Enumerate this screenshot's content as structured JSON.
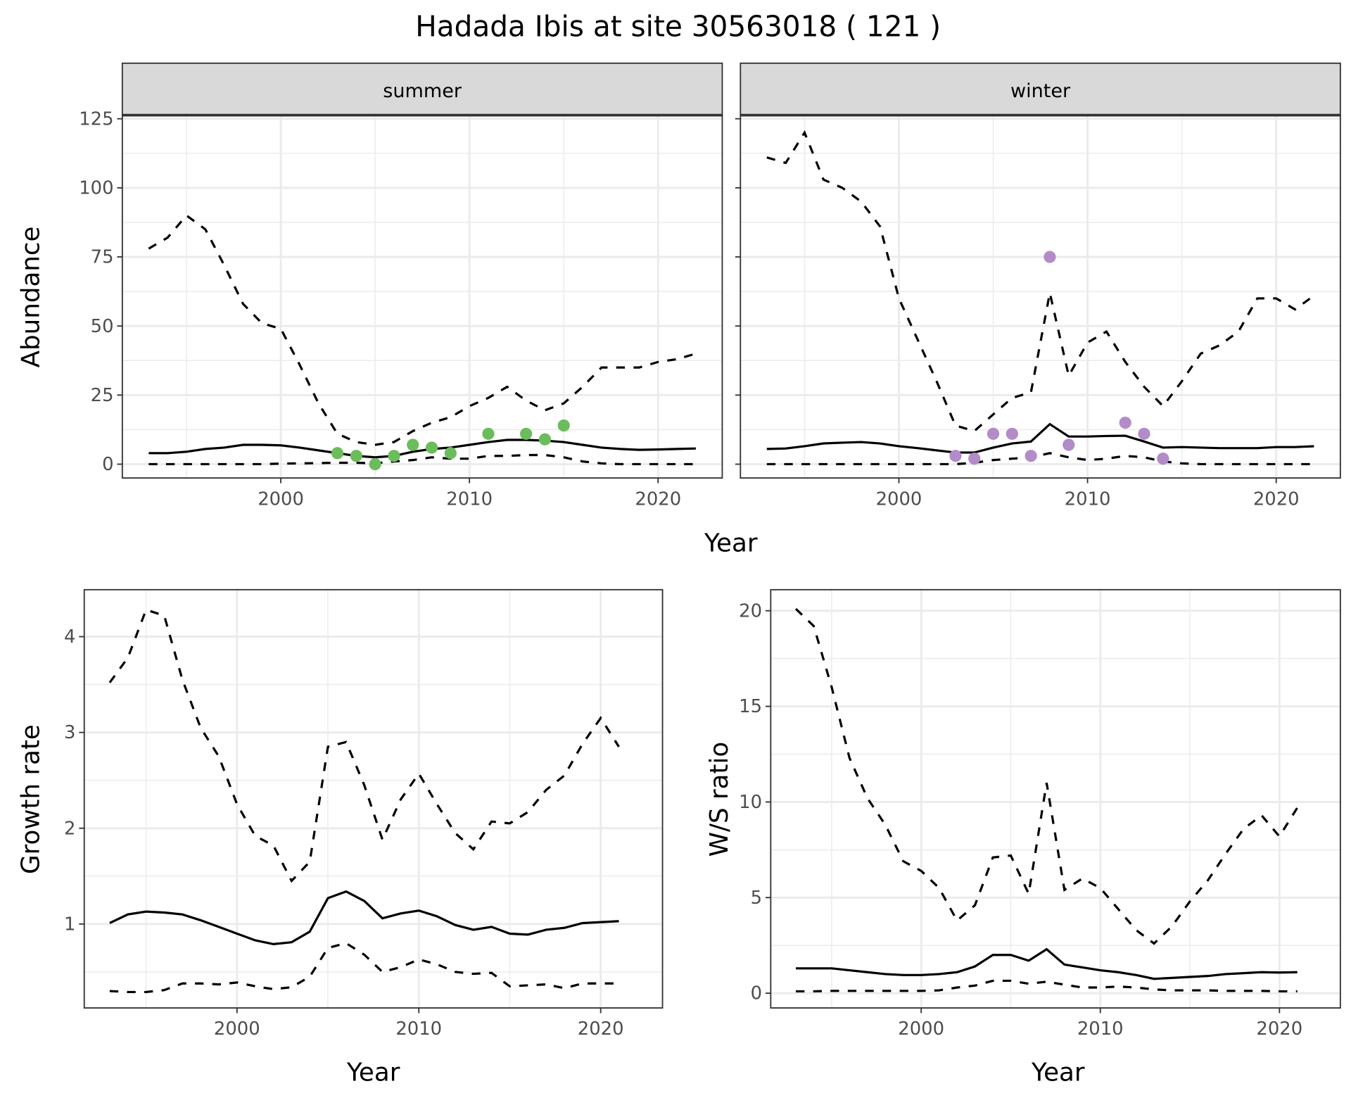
{
  "title": "Hadada Ibis at site 30563018 ( 121 )",
  "colors": {
    "summer_points": "#6bbd5b",
    "winter_points": "#b38bc8",
    "line": "#000000",
    "strip": "#d9d9d9",
    "grid": "#ebebeb"
  },
  "chart_data": [
    {
      "type": "line",
      "panel": "summer",
      "strip_label": "summer",
      "xlabel": "Year",
      "ylabel": "Abundance",
      "xlim": [
        1991.6,
        2023.4
      ],
      "ylim": [
        -5,
        126.3
      ],
      "x_ticks": [
        2000,
        2010,
        2020
      ],
      "y_ticks": [
        0,
        25,
        50,
        75,
        100,
        125
      ],
      "x": [
        1993,
        1994,
        1995,
        1996,
        1997,
        1998,
        1999,
        2000,
        2001,
        2002,
        2003,
        2004,
        2005,
        2006,
        2007,
        2008,
        2009,
        2010,
        2011,
        2012,
        2013,
        2014,
        2015,
        2016,
        2017,
        2018,
        2019,
        2020,
        2021,
        2022
      ],
      "series": [
        {
          "name": "upper",
          "style": "dashed",
          "values": [
            78,
            82,
            90,
            85,
            72,
            58,
            51,
            49,
            36,
            22,
            11,
            8,
            7,
            8,
            12,
            15,
            17,
            21,
            24,
            28,
            23,
            19.5,
            22,
            28,
            35,
            35,
            35,
            37,
            38,
            40
          ]
        },
        {
          "name": "mean",
          "style": "solid",
          "values": [
            4,
            4,
            4.5,
            5.5,
            6,
            7,
            7,
            6.8,
            6,
            5,
            4,
            3,
            2.5,
            3,
            4.5,
            5.5,
            6,
            7,
            8,
            8.8,
            8.8,
            8.5,
            8,
            7,
            6,
            5.5,
            5.2,
            5.3,
            5.5,
            5.7
          ]
        },
        {
          "name": "lower",
          "style": "dashed",
          "values": [
            0,
            0,
            0,
            0,
            0,
            0,
            0,
            0.2,
            0.3,
            0.4,
            0.5,
            0.5,
            0.3,
            1,
            1.5,
            2.5,
            2,
            2,
            3,
            3,
            3.3,
            3.3,
            2.5,
            1,
            0.3,
            0,
            0,
            0,
            0,
            0
          ]
        }
      ],
      "points": {
        "x": [
          2003,
          2004,
          2005,
          2006,
          2007,
          2008,
          2009,
          2011,
          2013,
          2014,
          2015
        ],
        "y": [
          4,
          3,
          0,
          3,
          7,
          6,
          4,
          11,
          11,
          9,
          14
        ]
      }
    },
    {
      "type": "line",
      "panel": "winter",
      "strip_label": "winter",
      "xlabel": "Year",
      "ylabel": "Abundance",
      "xlim": [
        1991.6,
        2023.4
      ],
      "ylim": [
        -5,
        126.3
      ],
      "x_ticks": [
        2000,
        2010,
        2020
      ],
      "y_ticks": [
        0,
        25,
        50,
        75,
        100,
        125
      ],
      "x": [
        1993,
        1994,
        1995,
        1996,
        1997,
        1998,
        1999,
        2000,
        2001,
        2002,
        2003,
        2004,
        2005,
        2006,
        2007,
        2008,
        2009,
        2010,
        2011,
        2012,
        2013,
        2014,
        2015,
        2016,
        2017,
        2018,
        2019,
        2020,
        2021,
        2022
      ],
      "series": [
        {
          "name": "upper",
          "style": "dashed",
          "values": [
            111,
            109,
            120,
            103,
            100,
            95,
            86,
            60,
            45,
            30,
            14,
            12,
            18,
            24,
            26,
            62,
            32,
            44,
            48,
            37,
            28,
            21,
            30,
            40,
            43,
            48,
            60,
            60,
            56,
            61
          ]
        },
        {
          "name": "mean",
          "style": "solid",
          "values": [
            5.5,
            5.7,
            6.5,
            7.5,
            7.8,
            8,
            7.5,
            6.5,
            5.8,
            5,
            4.2,
            4.2,
            6,
            7.5,
            8.2,
            14.5,
            10,
            10,
            10.2,
            10.3,
            8.2,
            6,
            6.2,
            6,
            5.8,
            5.8,
            5.8,
            6.2,
            6.2,
            6.5
          ]
        },
        {
          "name": "lower",
          "style": "dashed",
          "values": [
            0,
            0,
            0,
            0,
            0,
            0,
            0,
            0,
            0,
            0,
            0,
            0.5,
            1.5,
            2,
            2.5,
            4,
            2.5,
            1.5,
            2,
            3,
            2.5,
            1,
            0.3,
            0,
            0,
            0,
            0,
            0,
            0,
            0
          ]
        }
      ],
      "points": {
        "x": [
          2003,
          2004,
          2005,
          2006,
          2007,
          2008,
          2009,
          2012,
          2013,
          2014
        ],
        "y": [
          3,
          2,
          11,
          11,
          3,
          75,
          7,
          15,
          11,
          2
        ]
      }
    },
    {
      "type": "line",
      "panel": "growth",
      "xlabel": "Year",
      "ylabel": "Growth rate",
      "xlim": [
        1991.6,
        2023.4
      ],
      "ylim": [
        0.124,
        4.49
      ],
      "x_ticks": [
        2000,
        2010,
        2020
      ],
      "y_ticks": [
        1,
        2,
        3,
        4
      ],
      "x": [
        1993,
        1994,
        1995,
        1996,
        1997,
        1998,
        1999,
        2000,
        2001,
        2002,
        2003,
        2004,
        2005,
        2006,
        2007,
        2008,
        2009,
        2010,
        2011,
        2012,
        2013,
        2014,
        2015,
        2016,
        2017,
        2018,
        2019,
        2020,
        2021
      ],
      "series": [
        {
          "name": "upper",
          "style": "dashed",
          "values": [
            3.52,
            3.78,
            4.28,
            4.22,
            3.55,
            3.05,
            2.75,
            2.25,
            1.92,
            1.82,
            1.45,
            1.65,
            2.85,
            2.9,
            2.45,
            1.88,
            2.3,
            2.57,
            2.25,
            1.95,
            1.78,
            2.07,
            2.05,
            2.17,
            2.4,
            2.55,
            2.88,
            3.15,
            2.85
          ]
        },
        {
          "name": "mean",
          "style": "solid",
          "values": [
            1.01,
            1.1,
            1.13,
            1.12,
            1.1,
            1.04,
            0.97,
            0.9,
            0.83,
            0.79,
            0.81,
            0.92,
            1.27,
            1.34,
            1.24,
            1.06,
            1.11,
            1.14,
            1.08,
            0.99,
            0.94,
            0.97,
            0.9,
            0.89,
            0.94,
            0.96,
            1.01,
            1.02,
            1.03
          ]
        },
        {
          "name": "lower",
          "style": "dashed",
          "values": [
            0.3,
            0.29,
            0.29,
            0.31,
            0.38,
            0.38,
            0.37,
            0.39,
            0.35,
            0.32,
            0.34,
            0.45,
            0.75,
            0.8,
            0.68,
            0.5,
            0.55,
            0.63,
            0.58,
            0.5,
            0.48,
            0.49,
            0.35,
            0.36,
            0.37,
            0.33,
            0.38,
            0.38,
            0.38
          ]
        }
      ]
    },
    {
      "type": "line",
      "panel": "ws_ratio",
      "xlabel": "Year",
      "ylabel": "W/S ratio",
      "xlim": [
        1991.6,
        2023.4
      ],
      "ylim": [
        -0.77,
        21.1
      ],
      "x_ticks": [
        2000,
        2010,
        2020
      ],
      "y_ticks": [
        0,
        5,
        10,
        15,
        20
      ],
      "x": [
        1993,
        1994,
        1995,
        1996,
        1997,
        1998,
        1999,
        2000,
        2001,
        2002,
        2003,
        2004,
        2005,
        2006,
        2007,
        2008,
        2009,
        2010,
        2011,
        2012,
        2013,
        2014,
        2015,
        2016,
        2017,
        2018,
        2019,
        2020,
        2021
      ],
      "series": [
        {
          "name": "upper",
          "style": "dashed",
          "values": [
            20.1,
            19.2,
            16,
            12.3,
            10.2,
            8.8,
            6.9,
            6.4,
            5.5,
            3.8,
            4.6,
            7.1,
            7.2,
            5.2,
            11,
            5.4,
            6,
            5.5,
            4.4,
            3.3,
            2.6,
            3.5,
            4.8,
            5.9,
            7.3,
            8.6,
            9.3,
            8.2,
            9.7
          ]
        },
        {
          "name": "mean",
          "style": "solid",
          "values": [
            1.3,
            1.3,
            1.3,
            1.2,
            1.1,
            1.0,
            0.95,
            0.95,
            1.0,
            1.1,
            1.4,
            2.0,
            2.0,
            1.7,
            2.3,
            1.5,
            1.35,
            1.2,
            1.1,
            0.95,
            0.75,
            0.8,
            0.85,
            0.9,
            1.0,
            1.05,
            1.1,
            1.08,
            1.1
          ]
        },
        {
          "name": "lower",
          "style": "dashed",
          "values": [
            0.1,
            0.1,
            0.12,
            0.12,
            0.12,
            0.12,
            0.12,
            0.12,
            0.15,
            0.3,
            0.4,
            0.65,
            0.65,
            0.5,
            0.6,
            0.45,
            0.3,
            0.3,
            0.35,
            0.3,
            0.2,
            0.15,
            0.15,
            0.15,
            0.12,
            0.12,
            0.12,
            0.1,
            0.1
          ]
        }
      ]
    }
  ]
}
